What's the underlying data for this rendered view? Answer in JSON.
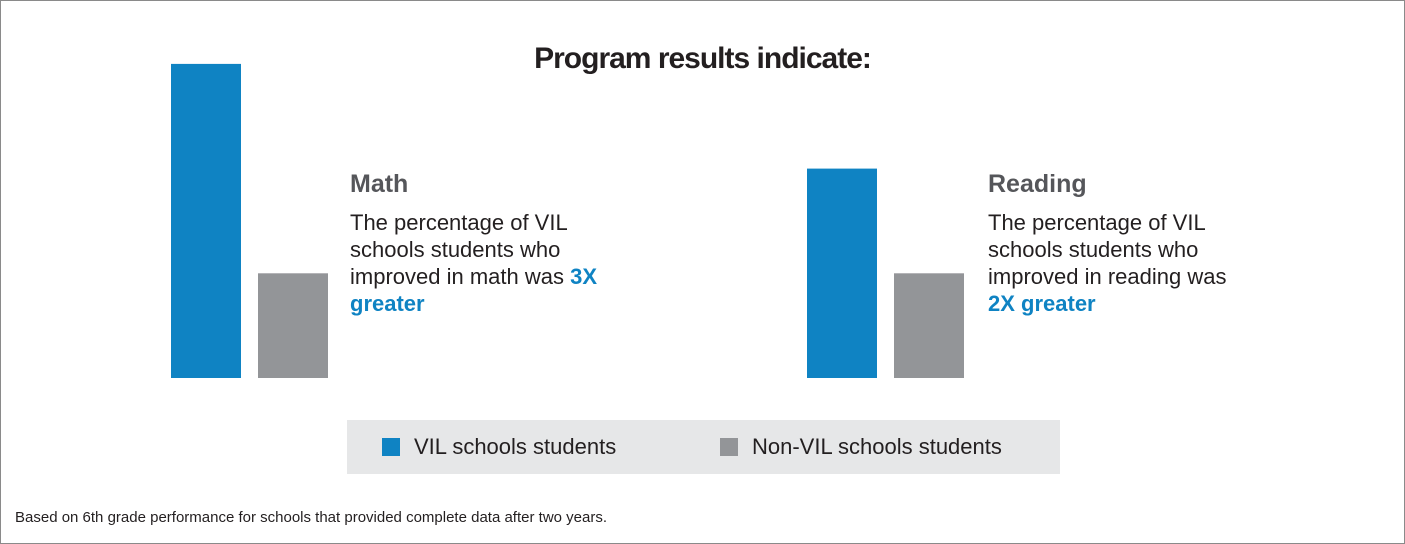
{
  "title": "Program results indicate:",
  "colors": {
    "vil": "#0f83c3",
    "non_vil": "#939598",
    "legend_bg": "#e6e7e8"
  },
  "blocks": [
    {
      "heading": "Math",
      "text_before": "The percentage of VIL schools students who improved in math was",
      "highlight": "3X greater"
    },
    {
      "heading": "Reading",
      "text_before": "The percentage of VIL schools students who improved in reading was",
      "highlight": "2X greater"
    }
  ],
  "legend": {
    "vil": "VIL schools students",
    "non_vil": "Non-VIL schools students"
  },
  "footnote": "Based on 6th grade performance for schools that provided complete data after two years.",
  "chart_data": [
    {
      "type": "bar",
      "categories": [
        "Math"
      ],
      "series": [
        {
          "name": "VIL schools students",
          "values": [
            3
          ]
        },
        {
          "name": "Non-VIL schools students",
          "values": [
            1
          ]
        }
      ]
    },
    {
      "type": "bar",
      "categories": [
        "Reading"
      ],
      "series": [
        {
          "name": "VIL schools students",
          "values": [
            2
          ]
        },
        {
          "name": "Non-VIL schools students",
          "values": [
            1
          ]
        }
      ]
    }
  ]
}
